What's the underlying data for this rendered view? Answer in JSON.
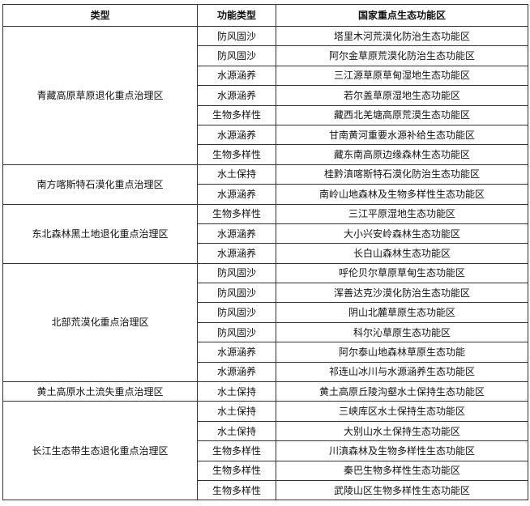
{
  "table": {
    "headers": [
      "类型",
      "功能类型",
      "国家重点生态功能区"
    ],
    "groups": [
      {
        "type": "青藏高原草原退化重点治理区",
        "rows": [
          [
            "防风固沙",
            "塔里木河荒漠化防治生态功能区"
          ],
          [
            "防风固沙",
            "阿尔金草原荒漠化防治生态功能区"
          ],
          [
            "水源涵养",
            "三江源草原草甸湿地生态功能区"
          ],
          [
            "水源涵养",
            "若尔盖草原湿地生态功能区"
          ],
          [
            "生物多样性",
            "藏西北羌塘高原荒漠生态功能区"
          ],
          [
            "水源涵养",
            "甘南黄河重要水源补给生态功能区"
          ],
          [
            "生物多样性",
            "藏东南高原边缘森林生态功能区"
          ]
        ]
      },
      {
        "type": "南方喀斯特石漠化重点治理区",
        "rows": [
          [
            "水土保持",
            "桂黔滇喀斯特石漠化防治生态功能区"
          ],
          [
            "水源涵养",
            "南岭山地森林及生物多样性生态功能区"
          ]
        ]
      },
      {
        "type": "东北森林黑土地退化重点治理区",
        "rows": [
          [
            "生物多样性",
            "三江平原湿地生态功能区"
          ],
          [
            "水源涵养",
            "大小兴安岭森林生态功能区"
          ],
          [
            "水源涵养",
            "长白山森林生态功能区"
          ]
        ]
      },
      {
        "type": "北部荒漠化重点治理区",
        "rows": [
          [
            "防风固沙",
            "呼伦贝尔草原草甸生态功能区"
          ],
          [
            "防风固沙",
            "浑善达克沙漠化防治生态功能区"
          ],
          [
            "防风固沙",
            "阴山北麓草原生态功能区"
          ],
          [
            "防风固沙",
            "科尔沁草原生态功能区"
          ],
          [
            "水源涵养",
            "阿尔泰山地森林草原生态功能"
          ],
          [
            "水源涵养",
            "祁连山冰川与水源涵养生态功能区"
          ]
        ]
      },
      {
        "type": "黄土高原水土流失重点治理区",
        "rows": [
          [
            "水土保持",
            "黄土高原丘陵沟壑水土保持生态功能区"
          ]
        ]
      },
      {
        "type": "长江生态带生态退化重点治理区",
        "rows": [
          [
            "水土保持",
            "三峡库区水土保持生态功能区"
          ],
          [
            "水土保持",
            "大别山水土保持生态功能区"
          ],
          [
            "生物多样性",
            "川滇森林及生物多样性生态功能区"
          ],
          [
            "生物多样性",
            "秦巴生物多样性生态功能区"
          ],
          [
            "生物多样性",
            "武陵山区生物多样性生态功能区"
          ]
        ]
      }
    ]
  }
}
